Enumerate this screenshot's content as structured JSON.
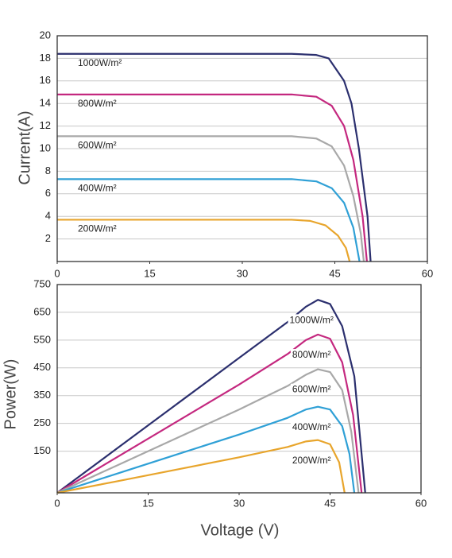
{
  "chart_data": [
    {
      "type": "line",
      "y_label": "Current(A)",
      "xlim": [
        0,
        60
      ],
      "xticks": [
        0,
        15,
        30,
        45,
        60
      ],
      "ylim": [
        0,
        20
      ],
      "yticks": [
        2,
        4,
        6,
        8,
        10,
        12,
        14,
        16,
        18,
        20
      ],
      "grid": true,
      "series": [
        {
          "name": "1000W/m²",
          "color": "#2b2f6e",
          "x": [
            0,
            38,
            42,
            44,
            46.5,
            47.7,
            48.9,
            50.3,
            50.8
          ],
          "values": [
            18.4,
            18.4,
            18.3,
            18,
            16,
            14,
            10,
            4,
            0
          ]
        },
        {
          "name": "800W/m²",
          "color": "#c4287f",
          "x": [
            0,
            38,
            42,
            44.5,
            46.5,
            48,
            49.5,
            50.2
          ],
          "values": [
            14.8,
            14.8,
            14.6,
            13.8,
            12,
            9,
            4,
            0
          ]
        },
        {
          "name": "600W/m²",
          "color": "#a8a8a8",
          "x": [
            0,
            38,
            42,
            44.5,
            46.5,
            48,
            49.2,
            49.7
          ],
          "values": [
            11.1,
            11.1,
            10.9,
            10.2,
            8.5,
            5.8,
            2.5,
            0
          ]
        },
        {
          "name": "400W/m²",
          "color": "#2fa0d6",
          "x": [
            0,
            38,
            42,
            44.5,
            46.5,
            48,
            49
          ],
          "values": [
            7.3,
            7.3,
            7.1,
            6.5,
            5.2,
            3,
            0
          ]
        },
        {
          "name": "200W/m²",
          "color": "#e8a52c",
          "x": [
            0,
            38,
            41,
            43.5,
            45.5,
            46.8,
            47.4
          ],
          "values": [
            3.7,
            3.7,
            3.6,
            3.2,
            2.3,
            1.2,
            0
          ]
        }
      ]
    },
    {
      "type": "line",
      "y_label": "Power(W)",
      "x_label": "Voltage  (V)",
      "xlim": [
        0,
        60
      ],
      "xticks": [
        0,
        15,
        30,
        45,
        60
      ],
      "ylim": [
        0,
        750
      ],
      "yticks": [
        150,
        250,
        350,
        450,
        550,
        650,
        750
      ],
      "grid": true,
      "series": [
        {
          "name": "1000W/m²",
          "color": "#2b2f6e",
          "x": [
            0,
            10,
            20,
            30,
            38,
            41,
            43,
            45,
            47,
            49,
            50.8
          ],
          "values": [
            0,
            162,
            324,
            486,
            615,
            670,
            695,
            680,
            600,
            420,
            0
          ]
        },
        {
          "name": "800W/m²",
          "color": "#c4287f",
          "x": [
            0,
            10,
            20,
            30,
            38,
            41,
            43,
            45,
            47,
            48.8,
            50.2
          ],
          "values": [
            0,
            130,
            260,
            390,
            500,
            550,
            570,
            555,
            470,
            280,
            0
          ]
        },
        {
          "name": "600W/m²",
          "color": "#a8a8a8",
          "x": [
            0,
            10,
            20,
            30,
            38,
            41,
            43,
            45,
            47,
            48.5,
            49.7
          ],
          "values": [
            0,
            100,
            200,
            300,
            385,
            425,
            445,
            435,
            370,
            220,
            0
          ]
        },
        {
          "name": "400W/m²",
          "color": "#2fa0d6",
          "x": [
            0,
            10,
            20,
            30,
            38,
            41,
            43,
            45,
            47,
            48.2,
            49
          ],
          "values": [
            0,
            70,
            140,
            210,
            270,
            300,
            310,
            300,
            240,
            140,
            0
          ]
        },
        {
          "name": "200W/m²",
          "color": "#e8a52c",
          "x": [
            0,
            10,
            20,
            30,
            38,
            41,
            43,
            45,
            46.5,
            47.4
          ],
          "values": [
            0,
            42,
            85,
            128,
            165,
            185,
            190,
            175,
            110,
            0
          ]
        }
      ]
    }
  ]
}
